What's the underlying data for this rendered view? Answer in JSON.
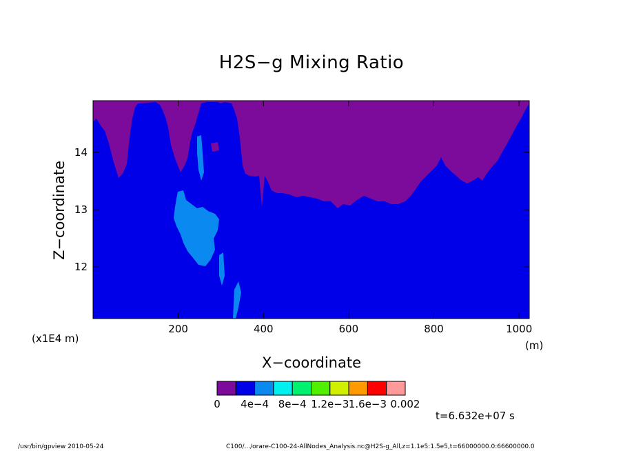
{
  "chart_data": {
    "type": "heatmap",
    "title": "H2S−g Mixing Ratio",
    "xlabel": "X−coordinate",
    "ylabel": "Z−coordinate",
    "x_unit": "(m)",
    "y_unit": "(x1E4 m)",
    "xlim": [
      0,
      1024
    ],
    "ylim": [
      11.1,
      14.9
    ],
    "x_ticks": [
      200,
      400,
      600,
      800,
      1000
    ],
    "y_ticks": [
      12,
      13,
      14
    ],
    "x_tick_labels": [
      "200",
      "400",
      "600",
      "800",
      "1000"
    ],
    "y_tick_labels": [
      "12",
      "13",
      "14"
    ],
    "color_levels": [
      0,
      0.0004,
      0.0008,
      0.0012,
      0.0016,
      0.002
    ],
    "colorbar_labels": [
      "0",
      "4e−4",
      "8e−4",
      "1.2e−3",
      "1.6e−3",
      "0.002"
    ],
    "colorbar_colors": [
      "#7c0a9a",
      "#0000e8",
      "#0a8af0",
      "#00f0f0",
      "#00f070",
      "#50f000",
      "#d0f000",
      "#ff9a00",
      "#ff0000",
      "#ff9a9a"
    ],
    "regions": [
      {
        "range": "0",
        "color": "#7c0a9a",
        "description": "upper band, mixing ratio near 0"
      },
      {
        "range": "0–4e−4",
        "color": "#0000e8",
        "description": "most of the domain"
      },
      {
        "range": "4e−4–8e−4",
        "color": "#0a8af0",
        "description": "plume near x = 200–350 m"
      }
    ],
    "grid": false
  },
  "annotations": {
    "time": "t=6.632e+07 s",
    "footer_left": "/usr/bin/gpview  2010-05-24",
    "footer_right": "C100/.../orare-C100-24-AllNodes_Analysis.nc@H2S-g_All,z=1.1e5:1.5e5,t=66000000.0:66600000.0"
  }
}
